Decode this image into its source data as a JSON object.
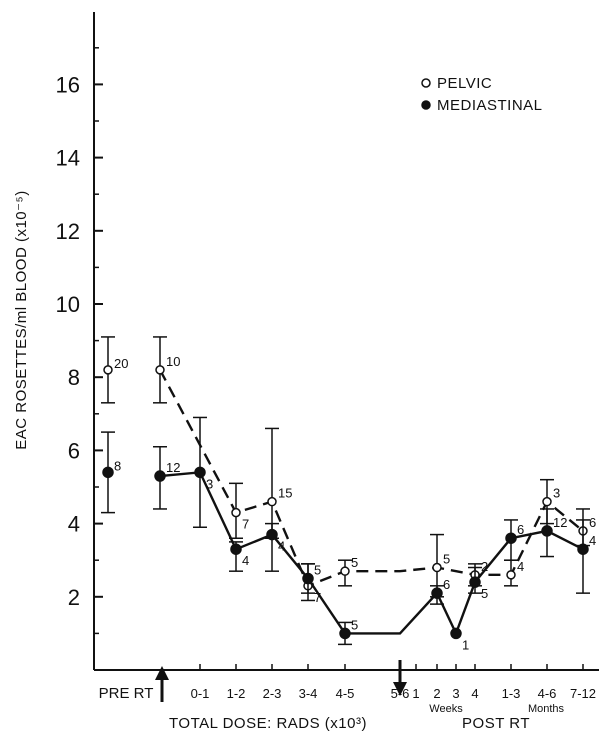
{
  "chart_data": {
    "type": "line",
    "ylabel": "EAC ROSETTES/ml BLOOD (x10⁻⁵)",
    "ylim": [
      0,
      18
    ],
    "yticks": [
      2,
      4,
      6,
      8,
      10,
      12,
      14,
      16
    ],
    "ytick_labels": [
      "2",
      "4",
      "6",
      "8",
      "10",
      "12",
      "14",
      "16"
    ],
    "x_categories": [
      "PRE RT",
      "0-1",
      "1-2",
      "2-3",
      "3-4",
      "4-5",
      "5-6",
      "1",
      "2",
      "3",
      "4",
      "1-3",
      "4-6",
      "7-12"
    ],
    "x_group_labels": [
      "PRE RT",
      "Weeks",
      "Months"
    ],
    "xlabel": "TOTAL DOSE: RADS (x10³)",
    "xlabel2": "POST RT",
    "markers": [
      "start-arrow",
      "end-arrow"
    ],
    "legend": [
      {
        "name": "PELVIC",
        "marker": "open-circle"
      },
      {
        "name": "MEDIASTINAL",
        "marker": "filled-circle"
      }
    ],
    "series": [
      {
        "name": "PELVIC",
        "marker": "open",
        "line": "dashed",
        "pre": {
          "y": 8.2,
          "lo": 7.3,
          "hi": 9.1,
          "n": "20"
        },
        "points": [
          {
            "x": "RT",
            "y": 8.2,
            "lo": 7.3,
            "hi": 9.1,
            "n": "10"
          },
          {
            "x": "1-2",
            "y": 4.3,
            "lo": 3.6,
            "hi": 5.1,
            "n": "7"
          },
          {
            "x": "2-3",
            "y": 4.6,
            "lo": 3.6,
            "hi": 6.6,
            "n": "15"
          },
          {
            "x": "3-4",
            "y": 2.3,
            "lo": 1.9,
            "hi": 2.9,
            "n": "7"
          },
          {
            "x": "4-5",
            "y": 2.7,
            "lo": 2.3,
            "hi": 3.0,
            "n": "5"
          },
          {
            "x": "5-6",
            "y": 2.7
          },
          {
            "x": "2",
            "y": 2.8,
            "lo": 2.0,
            "hi": 3.7,
            "n": "5"
          },
          {
            "x": "4",
            "y": 2.6,
            "lo": 2.3,
            "hi": 2.9,
            "n": "2"
          },
          {
            "x": "1-3",
            "y": 2.6,
            "lo": 2.3,
            "hi": 3.0,
            "n": "4"
          },
          {
            "x": "4-6",
            "y": 4.6,
            "lo": 4.0,
            "hi": 5.2,
            "n": "3"
          },
          {
            "x": "7-12",
            "y": 3.8,
            "lo": 3.4,
            "hi": 4.4,
            "n": "6"
          }
        ]
      },
      {
        "name": "MEDIASTINAL",
        "marker": "filled",
        "line": "solid",
        "pre": {
          "y": 5.4,
          "lo": 4.3,
          "hi": 6.5,
          "n": "8"
        },
        "points": [
          {
            "x": "RT",
            "y": 5.3,
            "lo": 4.4,
            "hi": 6.1,
            "n": "12"
          },
          {
            "x": "0-1",
            "y": 5.4,
            "lo": 3.9,
            "hi": 6.9,
            "n": "3"
          },
          {
            "x": "1-2",
            "y": 3.3,
            "lo": 2.7,
            "hi": 3.5,
            "n": "4"
          },
          {
            "x": "2-3",
            "y": 3.7,
            "lo": 2.7,
            "hi": 4.0,
            "n": "4"
          },
          {
            "x": "3-4",
            "y": 2.5,
            "lo": 2.1,
            "hi": 2.9,
            "n": "5"
          },
          {
            "x": "4-5",
            "y": 1.0,
            "lo": 0.7,
            "hi": 1.3,
            "n": "5"
          },
          {
            "x": "5-6",
            "y": 1.0
          },
          {
            "x": "2",
            "y": 2.1,
            "lo": 1.8,
            "hi": 2.3,
            "n": "6"
          },
          {
            "x": "3",
            "y": 1.0,
            "n": "1"
          },
          {
            "x": "4",
            "y": 2.4,
            "lo": 2.1,
            "hi": 2.8,
            "n": "5"
          },
          {
            "x": "1-3",
            "y": 3.6,
            "lo": 3.0,
            "hi": 4.1,
            "n": "6"
          },
          {
            "x": "4-6",
            "y": 3.8,
            "lo": 3.1,
            "hi": 4.4,
            "n": "12"
          },
          {
            "x": "7-12",
            "y": 3.3,
            "lo": 2.1,
            "hi": 4.1,
            "n": "4"
          }
        ]
      }
    ]
  }
}
